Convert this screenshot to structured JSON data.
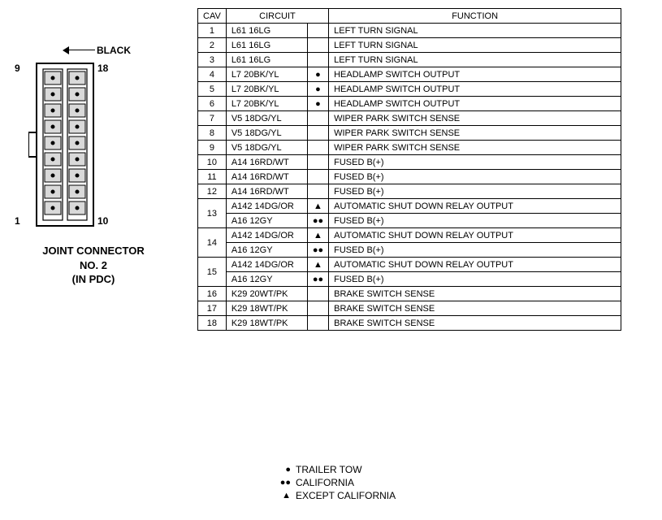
{
  "connector": {
    "color_label": "BLACK",
    "pin_labels": {
      "top_left": "9",
      "top_right": "18",
      "bottom_left": "1",
      "bottom_right": "10"
    },
    "title_line1": "JOINT CONNECTOR",
    "title_line2": "NO. 2",
    "title_line3": "(IN PDC)",
    "fill_color": "#d9d9d9",
    "stroke": "#000000"
  },
  "table": {
    "headers": {
      "cav": "CAV",
      "circuit": "CIRCUIT",
      "function": "FUNCTION"
    },
    "col_widths": {
      "cav": 34,
      "circuit": 100,
      "symbol": 22,
      "function": 360
    },
    "rows": [
      {
        "cav": "1",
        "circuit": "L61 16LG",
        "sym": "",
        "func": "LEFT TURN SIGNAL"
      },
      {
        "cav": "2",
        "circuit": "L61 16LG",
        "sym": "",
        "func": "LEFT TURN SIGNAL"
      },
      {
        "cav": "3",
        "circuit": "L61 16LG",
        "sym": "",
        "func": "LEFT TURN SIGNAL"
      },
      {
        "cav": "4",
        "circuit": "L7 20BK/YL",
        "sym": "●",
        "func": "HEADLAMP SWITCH OUTPUT"
      },
      {
        "cav": "5",
        "circuit": "L7 20BK/YL",
        "sym": "●",
        "func": "HEADLAMP SWITCH OUTPUT"
      },
      {
        "cav": "6",
        "circuit": "L7 20BK/YL",
        "sym": "●",
        "func": "HEADLAMP SWITCH OUTPUT"
      },
      {
        "cav": "7",
        "circuit": "V5 18DG/YL",
        "sym": "",
        "func": "WIPER PARK SWITCH SENSE"
      },
      {
        "cav": "8",
        "circuit": "V5 18DG/YL",
        "sym": "",
        "func": "WIPER PARK SWITCH SENSE"
      },
      {
        "cav": "9",
        "circuit": "V5 18DG/YL",
        "sym": "",
        "func": "WIPER PARK SWITCH SENSE"
      },
      {
        "cav": "10",
        "circuit": "A14 16RD/WT",
        "sym": "",
        "func": "FUSED B(+)"
      },
      {
        "cav": "11",
        "circuit": "A14 16RD/WT",
        "sym": "",
        "func": "FUSED B(+)"
      },
      {
        "cav": "12",
        "circuit": "A14 16RD/WT",
        "sym": "",
        "func": "FUSED B(+)"
      },
      {
        "cav": "13",
        "rowspan": 2,
        "circuit": "A142 14DG/OR",
        "sym": "▲",
        "func": "AUTOMATIC SHUT DOWN RELAY OUTPUT"
      },
      {
        "cav": "",
        "circuit": "A16 12GY",
        "sym": "●●",
        "func": "FUSED B(+)"
      },
      {
        "cav": "14",
        "rowspan": 2,
        "circuit": "A142 14DG/OR",
        "sym": "▲",
        "func": "AUTOMATIC SHUT DOWN RELAY OUTPUT"
      },
      {
        "cav": "",
        "circuit": "A16 12GY",
        "sym": "●●",
        "func": "FUSED B(+)"
      },
      {
        "cav": "15",
        "rowspan": 2,
        "circuit": "A142 14DG/OR",
        "sym": "▲",
        "func": "AUTOMATIC SHUT DOWN RELAY OUTPUT"
      },
      {
        "cav": "",
        "circuit": "A16 12GY",
        "sym": "●●",
        "func": "FUSED B(+)"
      },
      {
        "cav": "16",
        "circuit": "K29 20WT/PK",
        "sym": "",
        "func": "BRAKE SWITCH SENSE"
      },
      {
        "cav": "17",
        "circuit": "K29 18WT/PK",
        "sym": "",
        "func": "BRAKE SWITCH SENSE"
      },
      {
        "cav": "18",
        "circuit": "K29 18WT/PK",
        "sym": "",
        "func": "BRAKE SWITCH SENSE"
      }
    ]
  },
  "legend": [
    {
      "sym": "●",
      "label": "TRAILER TOW"
    },
    {
      "sym": "●●",
      "label": "CALIFORNIA"
    },
    {
      "sym": "▲",
      "label": "EXCEPT CALIFORNIA"
    }
  ]
}
